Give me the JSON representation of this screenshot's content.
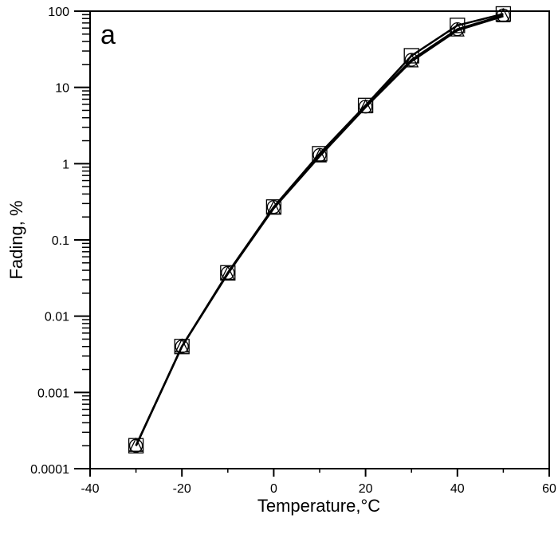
{
  "chart_data": {
    "type": "line",
    "panel_label": "a",
    "xlabel": "Temperature,",
    "xlabel_unit": "°C",
    "ylabel": "Fading, %",
    "xlim": [
      -40,
      60
    ],
    "ylim": [
      0.0001,
      100
    ],
    "yscale": "log",
    "x_ticks": [
      "-40",
      "-20",
      "0",
      "20",
      "40",
      "60"
    ],
    "y_ticks": [
      "0.0001",
      "0.001",
      "0.01",
      "0.1",
      "1",
      "10",
      "100"
    ],
    "grid": false,
    "x": [
      -30,
      -20,
      -10,
      0,
      10,
      20,
      30,
      40,
      50
    ],
    "series": [
      {
        "name": "squares",
        "marker": "square",
        "values": [
          0.0002,
          0.004,
          0.037,
          0.27,
          1.35,
          5.8,
          26,
          65,
          92
        ]
      },
      {
        "name": "circles",
        "marker": "circle",
        "values": [
          0.0002,
          0.004,
          0.037,
          0.27,
          1.3,
          5.6,
          23,
          58,
          88
        ]
      },
      {
        "name": "triangles",
        "marker": "triangle",
        "values": [
          0.0002,
          0.004,
          0.036,
          0.26,
          1.25,
          5.5,
          22,
          56,
          86
        ]
      }
    ]
  }
}
